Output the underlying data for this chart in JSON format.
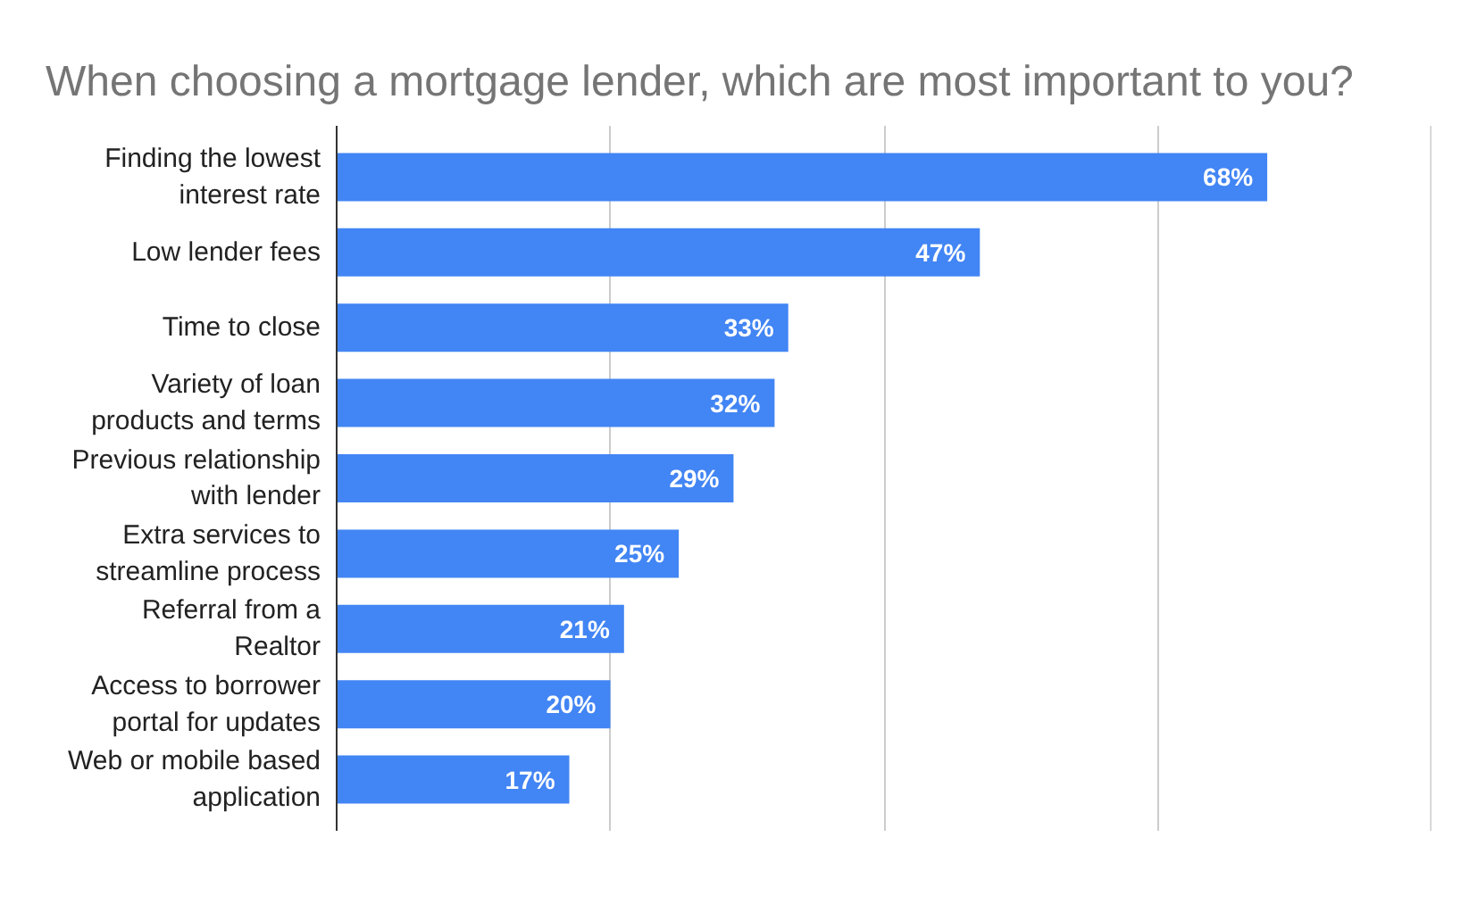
{
  "chart_data": {
    "type": "bar",
    "orientation": "horizontal",
    "title": "When choosing a mortgage lender, which are most important to you?",
    "categories": [
      "Finding the lowest interest rate",
      "Low lender fees",
      "Time to close",
      "Variety of loan products and terms",
      "Previous relationship with lender",
      "Extra services to streamline process",
      "Referral from a Realtor",
      "Access to borrower portal for updates",
      "Web or mobile based application"
    ],
    "values": [
      68,
      47,
      33,
      32,
      29,
      25,
      21,
      20,
      17
    ],
    "value_labels": [
      "68%",
      "47%",
      "33%",
      "32%",
      "29%",
      "25%",
      "21%",
      "20%",
      "17%"
    ],
    "color": "#4285f4",
    "xlim": [
      0,
      80
    ],
    "xticks": [
      {
        "value": 0,
        "label": null
      },
      {
        "value": 20,
        "label": null
      },
      {
        "value": 40,
        "label": null
      },
      {
        "value": 60,
        "label": null
      },
      {
        "value": 80,
        "label": null
      }
    ],
    "grid": "x",
    "tick_labels": "y"
  }
}
